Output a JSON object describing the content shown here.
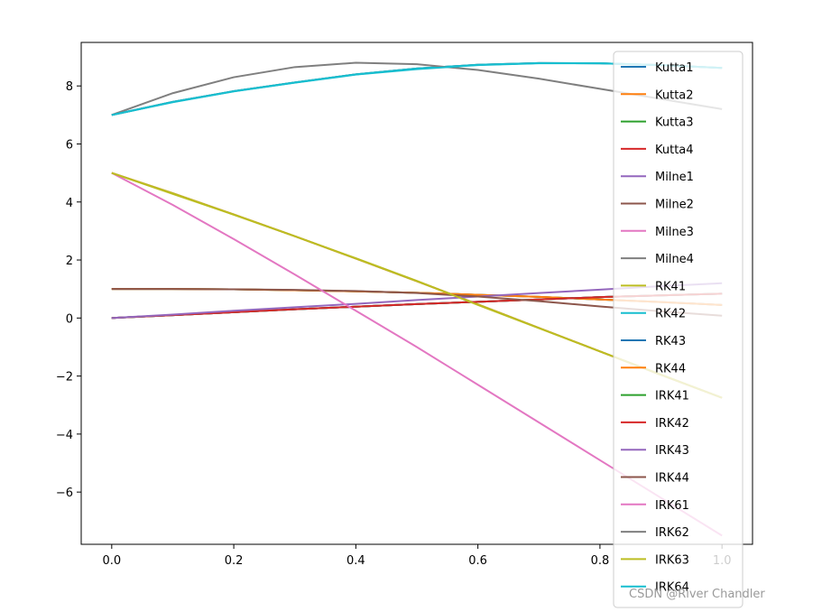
{
  "chart_data": {
    "type": "line",
    "title": "",
    "xlabel": "",
    "ylabel": "",
    "xlim": [
      -0.05,
      1.05
    ],
    "ylim": [
      -7.8,
      9.5
    ],
    "xticks": [
      0.0,
      0.2,
      0.4,
      0.6,
      0.8,
      1.0
    ],
    "xtick_labels": [
      "0.0",
      "0.2",
      "0.4",
      "0.6",
      "0.8",
      "1.0"
    ],
    "yticks": [
      -6,
      -4,
      -2,
      0,
      2,
      4,
      6,
      8
    ],
    "ytick_labels": [
      "−6",
      "−4",
      "−2",
      "0",
      "2",
      "4",
      "6",
      "8"
    ],
    "grid": false,
    "legend_position": "top-right",
    "x": [
      0.0,
      0.1,
      0.2,
      0.3,
      0.4,
      0.5,
      0.6,
      0.7,
      0.8,
      0.9,
      1.0
    ],
    "series": [
      {
        "name": "Kutta1",
        "color": "#1f77b4",
        "values": [
          7.0,
          7.45,
          7.82,
          8.12,
          8.4,
          8.6,
          8.73,
          8.79,
          8.78,
          8.72,
          8.62
        ]
      },
      {
        "name": "Kutta2",
        "color": "#ff7f0e",
        "values": [
          5.0,
          4.3,
          3.57,
          2.82,
          2.05,
          1.27,
          0.47,
          -0.34,
          -1.15,
          -1.96,
          -2.75
        ]
      },
      {
        "name": "Kutta3",
        "color": "#2ca02c",
        "values": [
          1.0,
          1.0,
          0.99,
          0.96,
          0.92,
          0.87,
          0.8,
          0.73,
          0.64,
          0.55,
          0.45
        ]
      },
      {
        "name": "Kutta4",
        "color": "#d62728",
        "values": [
          0.0,
          0.1,
          0.2,
          0.3,
          0.39,
          0.48,
          0.56,
          0.64,
          0.72,
          0.78,
          0.84
        ]
      },
      {
        "name": "Milne1",
        "color": "#9467bd",
        "values": [
          0.0,
          0.1,
          0.2,
          0.3,
          0.39,
          0.48,
          0.56,
          0.64,
          0.72,
          0.78,
          0.84
        ]
      },
      {
        "name": "Milne2",
        "color": "#8c564b",
        "values": [
          1.0,
          1.0,
          0.99,
          0.96,
          0.92,
          0.87,
          0.8,
          0.73,
          0.64,
          0.55,
          0.45
        ]
      },
      {
        "name": "Milne3",
        "color": "#e377c2",
        "values": [
          5.0,
          4.3,
          3.57,
          2.82,
          2.05,
          1.27,
          0.47,
          -0.34,
          -1.15,
          -1.96,
          -2.75
        ]
      },
      {
        "name": "Milne4",
        "color": "#7f7f7f",
        "values": [
          7.0,
          7.45,
          7.82,
          8.12,
          8.4,
          8.6,
          8.73,
          8.79,
          8.78,
          8.72,
          8.62
        ]
      },
      {
        "name": "RK41",
        "color": "#bcbd22",
        "values": [
          5.0,
          4.3,
          3.57,
          2.82,
          2.05,
          1.27,
          0.47,
          -0.34,
          -1.15,
          -1.96,
          -2.75
        ]
      },
      {
        "name": "RK42",
        "color": "#17becf",
        "values": [
          7.0,
          7.45,
          7.82,
          8.12,
          8.4,
          8.6,
          8.73,
          8.79,
          8.78,
          8.72,
          8.62
        ]
      },
      {
        "name": "RK43",
        "color": "#1f77b4",
        "values": [
          0.0,
          0.1,
          0.2,
          0.3,
          0.39,
          0.48,
          0.56,
          0.64,
          0.72,
          0.78,
          0.84
        ]
      },
      {
        "name": "RK44",
        "color": "#ff7f0e",
        "values": [
          1.0,
          1.0,
          0.99,
          0.96,
          0.92,
          0.87,
          0.8,
          0.73,
          0.64,
          0.55,
          0.45
        ]
      },
      {
        "name": "IRK41",
        "color": "#2ca02c",
        "values": [
          0.0,
          0.1,
          0.2,
          0.3,
          0.39,
          0.48,
          0.56,
          0.64,
          0.72,
          0.78,
          0.84
        ]
      },
      {
        "name": "IRK42",
        "color": "#d62728",
        "values": [
          0.0,
          0.1,
          0.2,
          0.3,
          0.39,
          0.48,
          0.56,
          0.64,
          0.72,
          0.78,
          0.84
        ]
      },
      {
        "name": "IRK43",
        "color": "#9467bd",
        "values": [
          0.0,
          0.12,
          0.25,
          0.37,
          0.49,
          0.62,
          0.74,
          0.86,
          0.98,
          1.1,
          1.2
        ]
      },
      {
        "name": "IRK44",
        "color": "#8c564b",
        "values": [
          1.0,
          1.0,
          0.99,
          0.97,
          0.93,
          0.86,
          0.74,
          0.58,
          0.4,
          0.23,
          0.08
        ]
      },
      {
        "name": "IRK61",
        "color": "#e377c2",
        "values": [
          5.0,
          3.9,
          2.72,
          1.5,
          0.25,
          -1.0,
          -2.3,
          -3.6,
          -4.9,
          -6.2,
          -7.5
        ]
      },
      {
        "name": "IRK62",
        "color": "#7f7f7f",
        "values": [
          7.0,
          7.75,
          8.3,
          8.65,
          8.8,
          8.75,
          8.55,
          8.25,
          7.9,
          7.55,
          7.2
        ]
      },
      {
        "name": "IRK63",
        "color": "#bcbd22",
        "values": [
          5.0,
          4.28,
          3.56,
          2.82,
          2.06,
          1.28,
          0.45,
          -0.35,
          -1.15,
          -1.95,
          -2.75
        ]
      },
      {
        "name": "IRK64",
        "color": "#17becf",
        "values": [
          7.0,
          7.44,
          7.81,
          8.11,
          8.39,
          8.58,
          8.72,
          8.78,
          8.78,
          8.72,
          8.62
        ]
      }
    ]
  },
  "watermark": "CSDN @River Chandler"
}
